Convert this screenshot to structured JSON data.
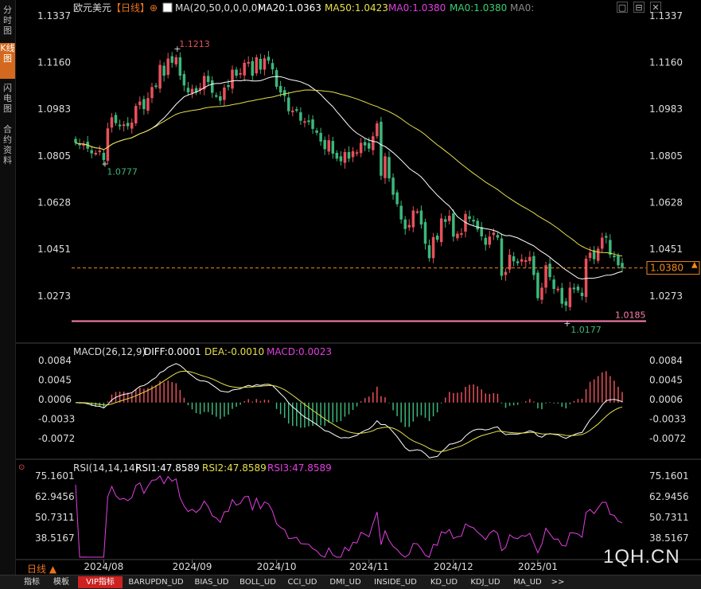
{
  "sidebar": {
    "tabs": [
      {
        "label": "分时图",
        "active": false
      },
      {
        "label": "K线图",
        "active": true
      },
      {
        "label": "闪电图",
        "active": false
      },
      {
        "label": "合约资料",
        "active": false
      }
    ]
  },
  "header": {
    "symbol": "欧元美元",
    "period_tag": "【日线】",
    "ma_params": "MA(20,50,0,0,0,0)",
    "ma20": "MA20:1.0363",
    "ma50": "MA50:1.0423",
    "ma0a": "MA0:1.0380",
    "ma0b": "MA0:1.0380",
    "ma0c": "MA0:"
  },
  "price_panel": {
    "y_ticks": [
      "1.1337",
      "1.1160",
      "1.0983",
      "1.0805",
      "1.0628",
      "1.0451",
      "1.0273"
    ],
    "y_tick_values": [
      1.1337,
      1.116,
      1.0983,
      1.0805,
      1.0628,
      1.0451,
      1.0273
    ],
    "current_price": "1.0380",
    "hline_label": "1.0185",
    "high_label": "1.1213",
    "low_label1": "1.0777",
    "low_label2": "1.0177"
  },
  "macd_panel": {
    "title": "MACD(26,12,9)",
    "diff": "DIFF:0.0001",
    "dea": "DEA:-0.0010",
    "macd": "MACD:0.0023",
    "y_ticks": [
      "0.0084",
      "0.0045",
      "0.0006",
      "-0.0033",
      "-0.0072"
    ],
    "y_tick_values": [
      0.0084,
      0.0045,
      0.0006,
      -0.0033,
      -0.0072
    ]
  },
  "rsi_panel": {
    "title": "RSI(14,14,14)",
    "rsi1": "RSI1:47.8589",
    "rsi2": "RSI2:47.8589",
    "rsi3": "RSI3:47.8589",
    "y_ticks": [
      "75.1601",
      "62.9456",
      "50.7311",
      "38.5167"
    ],
    "y_tick_values": [
      75.1601,
      62.9456,
      50.7311,
      38.5167
    ]
  },
  "x_axis": {
    "labels": [
      "2024/08",
      "2024/09",
      "2024/10",
      "2024/11",
      "2024/12",
      "2025/01"
    ]
  },
  "period_label": "日线 ▲",
  "watermark": "1QH.CN",
  "bottom_tabs": [
    "指标",
    "模板",
    "VIP指标",
    "BARUPDN_UD",
    "BIAS_UD",
    "BOLL_UD",
    "CCI_UD",
    "DMI_UD",
    "INSIDE_UD",
    "KD_UD",
    "KDJ_UD",
    "MA_UD",
    ">>"
  ],
  "colors": {
    "up": "#e8505b",
    "down": "#3cb77b",
    "ma20": "#ffffff",
    "ma50": "#e6e04a",
    "dea": "#e6e04a",
    "macd_label": "#e040e0",
    "rsi": "#e040e0",
    "hline": "#ff7fb0",
    "current": "#f08a1c"
  },
  "chart_data": [
    {
      "type": "candlestick",
      "title": "欧元美元 日线",
      "x": [
        "2024-07-23",
        "2024-07-24",
        "2024-07-25",
        "2024-07-26",
        "2024-07-29",
        "2024-07-30",
        "2024-07-31",
        "2024-08-01",
        "2024-08-02",
        "2024-08-05",
        "2024-08-06",
        "2024-08-07",
        "2024-08-08",
        "2024-08-09",
        "2024-08-12",
        "2024-08-13",
        "2024-08-14",
        "2024-08-15",
        "2024-08-16",
        "2024-08-19",
        "2024-08-20",
        "2024-08-21",
        "2024-08-22",
        "2024-08-23",
        "2024-08-26",
        "2024-08-27",
        "2024-08-28",
        "2024-08-29",
        "2024-08-30",
        "2024-09-02",
        "2024-09-03",
        "2024-09-04",
        "2024-09-05",
        "2024-09-06",
        "2024-09-09",
        "2024-09-10",
        "2024-09-11",
        "2024-09-12",
        "2024-09-13",
        "2024-09-16",
        "2024-09-17",
        "2024-09-18",
        "2024-09-19",
        "2024-09-20",
        "2024-09-23",
        "2024-09-24",
        "2024-09-25",
        "2024-09-26",
        "2024-09-27",
        "2024-09-30",
        "2024-10-01",
        "2024-10-02",
        "2024-10-03",
        "2024-10-04",
        "2024-10-07",
        "2024-10-08",
        "2024-10-09",
        "2024-10-10",
        "2024-10-11",
        "2024-10-14",
        "2024-10-15",
        "2024-10-16",
        "2024-10-17",
        "2024-10-18",
        "2024-10-21",
        "2024-10-22",
        "2024-10-23",
        "2024-10-24",
        "2024-10-25",
        "2024-10-28",
        "2024-10-29",
        "2024-10-30",
        "2024-10-31",
        "2024-11-01",
        "2024-11-04",
        "2024-11-05",
        "2024-11-06",
        "2024-11-07",
        "2024-11-08",
        "2024-11-11",
        "2024-11-12",
        "2024-11-13",
        "2024-11-14",
        "2024-11-15",
        "2024-11-18",
        "2024-11-19",
        "2024-11-20",
        "2024-11-21",
        "2024-11-22",
        "2024-11-25",
        "2024-11-26",
        "2024-11-27",
        "2024-11-28",
        "2024-11-29",
        "2024-12-02",
        "2024-12-03",
        "2024-12-04",
        "2024-12-05",
        "2024-12-06",
        "2024-12-09",
        "2024-12-10",
        "2024-12-11",
        "2024-12-12",
        "2024-12-13",
        "2024-12-16",
        "2024-12-17",
        "2024-12-18",
        "2024-12-19",
        "2024-12-20",
        "2024-12-23",
        "2024-12-24",
        "2024-12-26",
        "2024-12-27",
        "2024-12-30",
        "2024-12-31",
        "2025-01-02",
        "2025-01-03",
        "2025-01-06",
        "2025-01-07",
        "2025-01-08",
        "2025-01-09",
        "2025-01-10",
        "2025-01-13",
        "2025-01-14",
        "2025-01-15",
        "2025-01-16",
        "2025-01-17",
        "2025-01-20",
        "2025-01-21",
        "2025-01-22",
        "2025-01-23",
        "2025-01-24",
        "2025-01-27",
        "2025-01-28",
        "2025-01-29",
        "2025-01-30",
        "2025-01-31"
      ],
      "close": [
        1.0855,
        1.0847,
        1.085,
        1.0833,
        1.0815,
        1.0817,
        1.0826,
        1.079,
        1.091,
        1.0952,
        1.093,
        1.092,
        1.0925,
        1.0918,
        1.0932,
        1.0995,
        1.1012,
        1.0983,
        1.1025,
        1.1067,
        1.107,
        1.1151,
        1.111,
        1.1175,
        1.1159,
        1.118,
        1.111,
        1.1073,
        1.1047,
        1.106,
        1.1046,
        1.1064,
        1.1109,
        1.1086,
        1.1045,
        1.1035,
        1.1015,
        1.1065,
        1.1067,
        1.1133,
        1.111,
        1.112,
        1.1159,
        1.1162,
        1.111,
        1.118,
        1.1133,
        1.1176,
        1.1167,
        1.1134,
        1.1068,
        1.1046,
        1.1033,
        1.0975,
        1.0977,
        1.098,
        1.0939,
        1.0937,
        1.0935,
        1.0908,
        1.0893,
        1.086,
        1.0831,
        1.0865,
        1.0814,
        1.0795,
        1.0785,
        1.082,
        1.0795,
        1.0823,
        1.0819,
        1.0855,
        1.0845,
        1.0833,
        1.088,
        1.0929,
        1.073,
        1.0804,
        1.072,
        1.0658,
        1.0622,
        1.0564,
        1.0528,
        1.0543,
        1.0598,
        1.0595,
        1.0545,
        1.0472,
        1.0417,
        1.0497,
        1.0487,
        1.0568,
        1.0555,
        1.0578,
        1.0499,
        1.051,
        1.0512,
        1.0585,
        1.0566,
        1.0556,
        1.0526,
        1.05,
        1.0468,
        1.0499,
        1.0514,
        1.0495,
        1.035,
        1.0365,
        1.043,
        1.0405,
        1.0398,
        1.0413,
        1.0409,
        1.0422,
        1.0353,
        1.0265,
        1.0305,
        1.039,
        1.0345,
        1.03,
        1.0301,
        1.0244,
        1.0237,
        1.0305,
        1.0303,
        1.0295,
        1.0273,
        1.0415,
        1.0438,
        1.0413,
        1.0453,
        1.0495,
        1.0495,
        1.043,
        1.0424,
        1.039,
        1.038
      ],
      "ylim": [
        1.0177,
        1.1337
      ],
      "ma20_final": 1.0363,
      "ma50_final": 1.0423,
      "high_marker": 1.1213,
      "low_markers": [
        1.0777,
        1.0177
      ],
      "horizontal_line": 1.0185,
      "current_price": 1.038
    },
    {
      "type": "line",
      "title": "MACD(26,12,9)",
      "series": [
        {
          "name": "DIFF",
          "final": 0.0001
        },
        {
          "name": "DEA",
          "final": -0.001
        },
        {
          "name": "MACD",
          "final": 0.0023
        }
      ],
      "ylim": [
        -0.0084,
        0.009
      ]
    },
    {
      "type": "line",
      "title": "RSI(14,14,14)",
      "series": [
        {
          "name": "RSI1",
          "final": 47.8589
        },
        {
          "name": "RSI2",
          "final": 47.8589
        },
        {
          "name": "RSI3",
          "final": 47.8589
        }
      ],
      "ylim": [
        27.0,
        79.0
      ]
    }
  ]
}
